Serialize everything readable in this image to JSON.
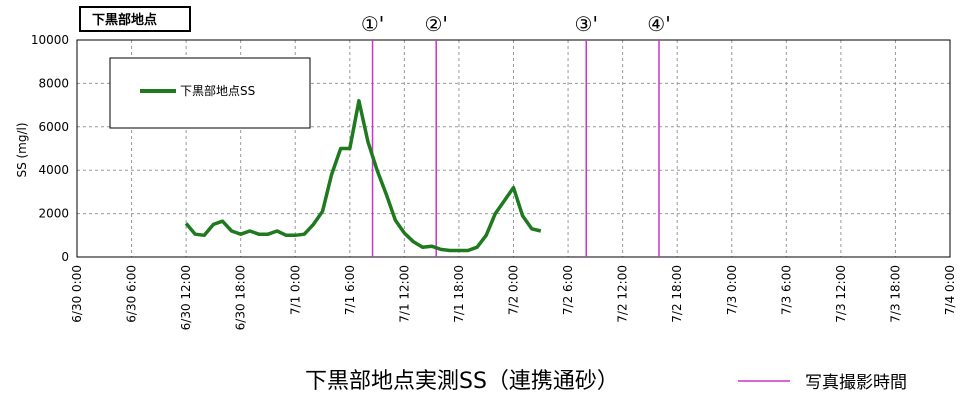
{
  "station_label": "下黒部地点",
  "caption": "下黒部地点実測SS（連携通砂）",
  "photo_legend_label": "写真撮影時間",
  "colors": {
    "series": "#1f7a1f",
    "photo_line": "#cc33cc",
    "grid": "#999999"
  },
  "chart_data": {
    "type": "line",
    "ylabel": "SS (mg/l)",
    "ylim": [
      0,
      10000
    ],
    "yticks": [
      0,
      2000,
      4000,
      6000,
      8000,
      10000
    ],
    "xlim_hours": [
      0,
      96
    ],
    "xtick_hours": [
      0,
      6,
      12,
      18,
      24,
      30,
      36,
      42,
      48,
      54,
      60,
      66,
      72,
      78,
      84,
      90,
      96
    ],
    "xtick_labels": [
      "6/30 0:00",
      "6/30 6:00",
      "6/30 12:00",
      "6/30 18:00",
      "7/1 0:00",
      "7/1 6:00",
      "7/1 12:00",
      "7/1 18:00",
      "7/2 0:00",
      "7/2 6:00",
      "7/2 12:00",
      "7/2 18:00",
      "7/3 0:00",
      "7/3 6:00",
      "7/3 12:00",
      "7/3 18:00",
      "7/4 0:00"
    ],
    "grid": true,
    "legend_position": "top-left",
    "series": [
      {
        "name": "下黒部地点SS",
        "x_hours": [
          12,
          13,
          14,
          15,
          16,
          17,
          18,
          19,
          20,
          21,
          22,
          23,
          24,
          25,
          26,
          27,
          28,
          29,
          30,
          31,
          32,
          33,
          34,
          35,
          36,
          37,
          38,
          39,
          40,
          41,
          42,
          43,
          44,
          45,
          46,
          47,
          48,
          49,
          50,
          51
        ],
        "values": [
          1550,
          1050,
          1000,
          1500,
          1650,
          1200,
          1050,
          1200,
          1050,
          1050,
          1200,
          1000,
          1000,
          1050,
          1500,
          2100,
          3800,
          5000,
          5000,
          7200,
          5300,
          4000,
          2900,
          1700,
          1100,
          700,
          450,
          500,
          350,
          300,
          300,
          300,
          450,
          1000,
          2000,
          2600,
          3200,
          1900,
          1300,
          1200
        ]
      }
    ],
    "photo_markers": [
      {
        "label": "①'",
        "x_hours": 32.5
      },
      {
        "label": "②'",
        "x_hours": 39.5
      },
      {
        "label": "③'",
        "x_hours": 56
      },
      {
        "label": "④'",
        "x_hours": 64
      }
    ]
  }
}
